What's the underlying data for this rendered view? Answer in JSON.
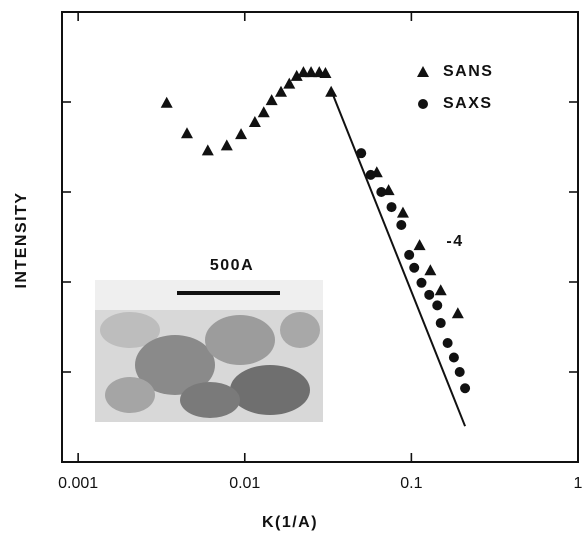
{
  "chart_data": {
    "type": "scatter",
    "x_label": "K(1/A)",
    "y_label": "INTENSITY",
    "xlog": true,
    "ylog": true,
    "xlim": [
      0.0008,
      1
    ],
    "ylim": [
      1,
      100000
    ],
    "xticks": [
      0.001,
      0.01,
      0.1,
      1
    ],
    "yticks": [
      10,
      100,
      1000,
      10000
    ],
    "legend": "upper right",
    "series": [
      {
        "name": "SANS",
        "marker": "triangle",
        "color": "#111111",
        "x": [
          0.0034,
          0.0045,
          0.006,
          0.0078,
          0.0095,
          0.0115,
          0.013,
          0.0145,
          0.0165,
          0.0185,
          0.0205,
          0.0225,
          0.025,
          0.028,
          0.0305,
          0.033,
          0.062,
          0.073,
          0.089,
          0.112,
          0.13,
          0.15,
          0.19
        ],
        "values": [
          9800,
          4500,
          2900,
          3300,
          4400,
          6000,
          7700,
          10500,
          13000,
          16000,
          19500,
          21500,
          21500,
          21500,
          21000,
          13000,
          1660,
          1050,
          590,
          257,
          135,
          81,
          45
        ]
      },
      {
        "name": "SAXS",
        "marker": "circle",
        "color": "#111111",
        "x": [
          0.05,
          0.057,
          0.066,
          0.076,
          0.087,
          0.097,
          0.104,
          0.115,
          0.128,
          0.143,
          0.15,
          0.165,
          0.18,
          0.195,
          0.21
        ],
        "values": [
          2700,
          1550,
          1000,
          680,
          430,
          200,
          144,
          98,
          72,
          55,
          35,
          21,
          14.5,
          10,
          6.6
        ]
      }
    ],
    "fit_line": {
      "label": "-4",
      "x": [
        0.033,
        0.21
      ],
      "values": [
        13500,
        2.5
      ]
    },
    "inset_label": "500A"
  }
}
